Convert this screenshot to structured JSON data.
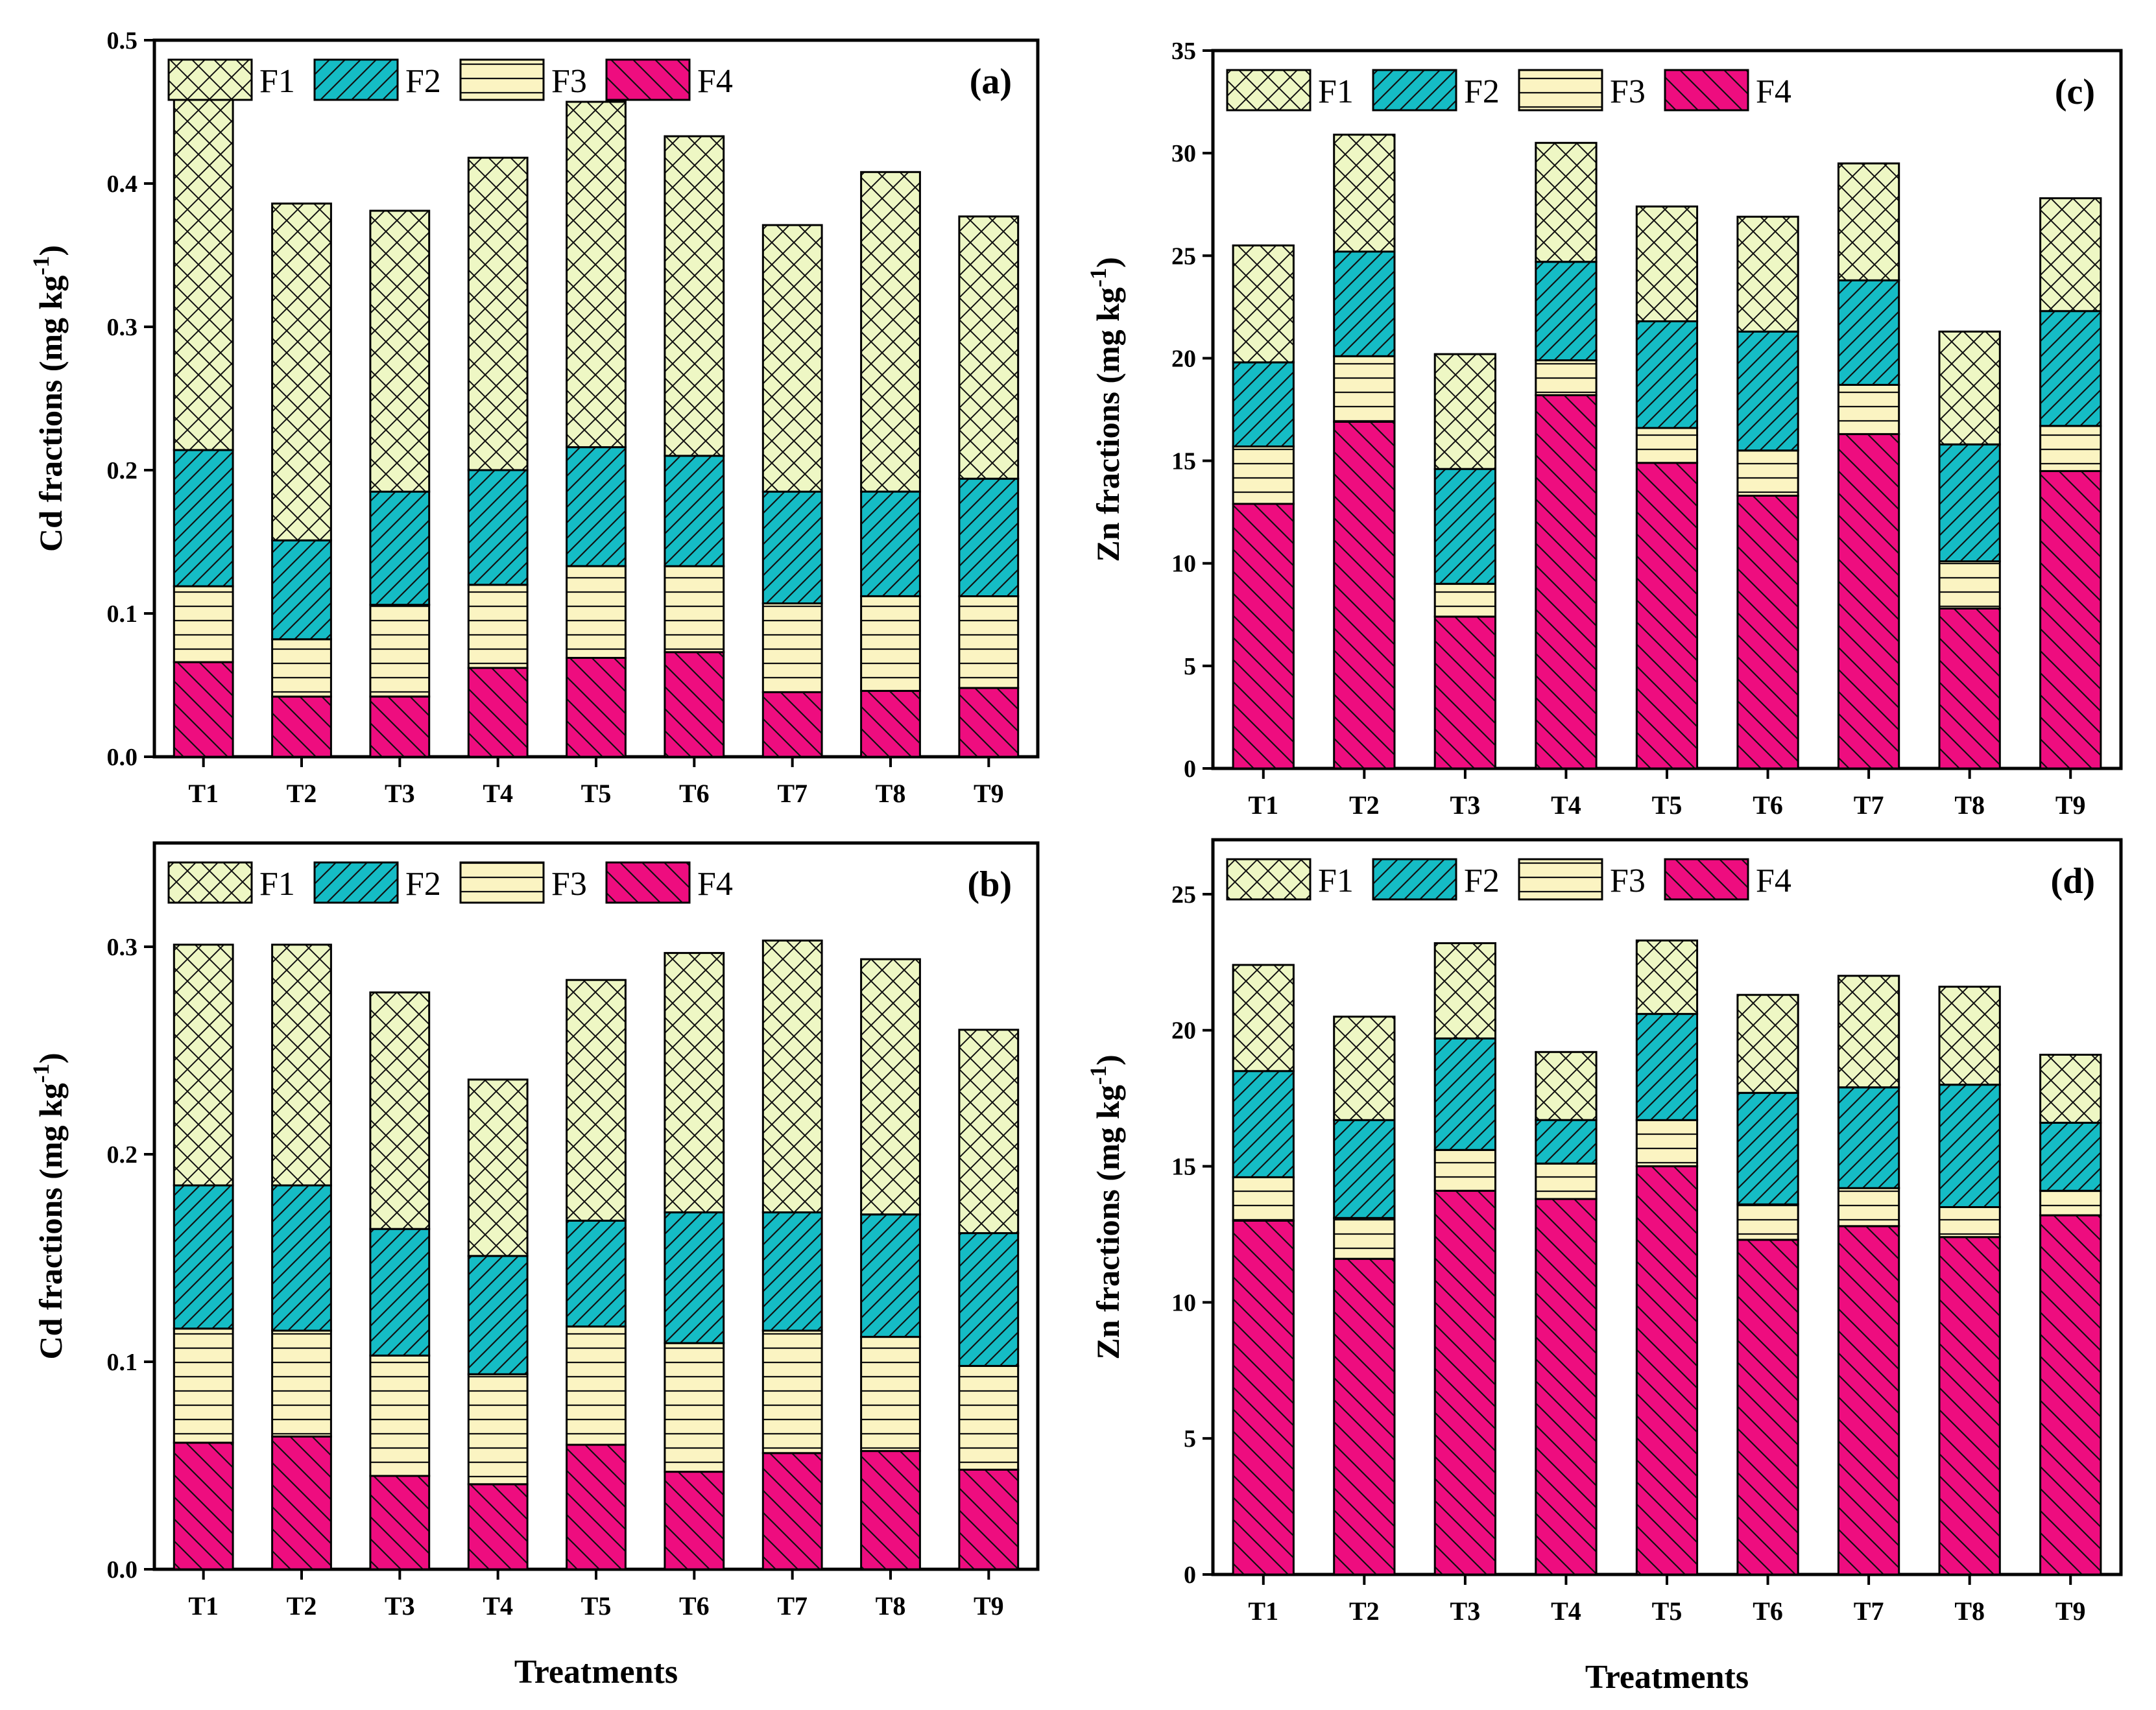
{
  "figure": {
    "legend_labels": [
      "F1",
      "F2",
      "F3",
      "F4"
    ],
    "colors": {
      "F1": "#eef7c4",
      "F2": "#15bcc5",
      "F3": "#fbf4c2",
      "F4": "#ee0d7f"
    }
  },
  "chart_data": [
    {
      "panel": "(a)",
      "type": "bar",
      "stacked": true,
      "categories": [
        "T1",
        "T2",
        "T3",
        "T4",
        "T5",
        "T6",
        "T7",
        "T8",
        "T9"
      ],
      "ylabel": "Cd fractions (mg kg",
      "ylabel_sup": "-1",
      "ylabel_tail": ")",
      "xlabel": "",
      "ylim": [
        0,
        0.5
      ],
      "yticks": [
        0,
        0.1,
        0.2,
        0.3,
        0.4,
        0.5
      ],
      "ytick_labels": [
        "0.0",
        "0.1",
        "0.2",
        "0.3",
        "0.4",
        "0.5"
      ],
      "legend_position": "top-left",
      "series": [
        {
          "name": "F4",
          "values": [
            0.066,
            0.042,
            0.042,
            0.062,
            0.069,
            0.073,
            0.045,
            0.046,
            0.048
          ]
        },
        {
          "name": "F3",
          "values": [
            0.053,
            0.04,
            0.064,
            0.058,
            0.064,
            0.06,
            0.062,
            0.066,
            0.064
          ]
        },
        {
          "name": "F2",
          "values": [
            0.095,
            0.069,
            0.079,
            0.08,
            0.083,
            0.077,
            0.078,
            0.073,
            0.082
          ]
        },
        {
          "name": "F1",
          "values": [
            0.253,
            0.235,
            0.196,
            0.218,
            0.241,
            0.223,
            0.186,
            0.223,
            0.183
          ]
        }
      ]
    },
    {
      "panel": "(b)",
      "type": "bar",
      "stacked": true,
      "categories": [
        "T1",
        "T2",
        "T3",
        "T4",
        "T5",
        "T6",
        "T7",
        "T8",
        "T9"
      ],
      "ylabel": "Cd fractions (mg kg",
      "ylabel_sup": "-1",
      "ylabel_tail": ")",
      "xlabel": "Treatments",
      "ylim": [
        0,
        0.35
      ],
      "yticks": [
        0,
        0.1,
        0.2,
        0.3
      ],
      "ytick_labels": [
        "0.0",
        "0.1",
        "0.2",
        "0.3"
      ],
      "legend_position": "top-left",
      "series": [
        {
          "name": "F4",
          "values": [
            0.061,
            0.064,
            0.045,
            0.041,
            0.06,
            0.047,
            0.056,
            0.057,
            0.048
          ]
        },
        {
          "name": "F3",
          "values": [
            0.055,
            0.051,
            0.058,
            0.053,
            0.057,
            0.062,
            0.059,
            0.055,
            0.05
          ]
        },
        {
          "name": "F2",
          "values": [
            0.069,
            0.07,
            0.061,
            0.057,
            0.051,
            0.063,
            0.057,
            0.059,
            0.064
          ]
        },
        {
          "name": "F1",
          "values": [
            0.116,
            0.116,
            0.114,
            0.085,
            0.116,
            0.125,
            0.131,
            0.123,
            0.098
          ]
        }
      ]
    },
    {
      "panel": "(c)",
      "type": "bar",
      "stacked": true,
      "categories": [
        "T1",
        "T2",
        "T3",
        "T4",
        "T5",
        "T6",
        "T7",
        "T8",
        "T9"
      ],
      "ylabel": "Zn fractions (mg kg",
      "ylabel_sup": "-1",
      "ylabel_tail": ")",
      "xlabel": "",
      "ylim": [
        0,
        35
      ],
      "yticks": [
        0,
        5,
        10,
        15,
        20,
        25,
        30,
        35
      ],
      "ytick_labels": [
        "0",
        "5",
        "10",
        "15",
        "20",
        "25",
        "30",
        "35"
      ],
      "legend_position": "top-left",
      "series": [
        {
          "name": "F4",
          "values": [
            12.9,
            16.9,
            7.4,
            18.2,
            14.9,
            13.3,
            16.3,
            7.8,
            14.5
          ]
        },
        {
          "name": "F3",
          "values": [
            2.8,
            3.2,
            1.6,
            1.7,
            1.7,
            2.2,
            2.4,
            2.3,
            2.2
          ]
        },
        {
          "name": "F2",
          "values": [
            4.1,
            5.1,
            5.6,
            4.8,
            5.2,
            5.8,
            5.1,
            5.7,
            5.6
          ]
        },
        {
          "name": "F1",
          "values": [
            5.7,
            5.7,
            5.6,
            5.8,
            5.6,
            5.6,
            5.7,
            5.5,
            5.5
          ]
        }
      ]
    },
    {
      "panel": "(d)",
      "type": "bar",
      "stacked": true,
      "categories": [
        "T1",
        "T2",
        "T3",
        "T4",
        "T5",
        "T6",
        "T7",
        "T8",
        "T9"
      ],
      "ylabel": "Zn fractions (mg kg",
      "ylabel_sup": "-1",
      "ylabel_tail": ")",
      "xlabel": "Treatments",
      "ylim": [
        0,
        27
      ],
      "yticks": [
        0,
        5,
        10,
        15,
        20,
        25
      ],
      "ytick_labels": [
        "0",
        "5",
        "10",
        "15",
        "20",
        "25"
      ],
      "legend_position": "top-left",
      "series": [
        {
          "name": "F4",
          "values": [
            13.0,
            11.6,
            14.1,
            13.8,
            15.0,
            12.3,
            12.8,
            12.4,
            13.2
          ]
        },
        {
          "name": "F3",
          "values": [
            1.6,
            1.5,
            1.5,
            1.3,
            1.7,
            1.3,
            1.4,
            1.1,
            0.9
          ]
        },
        {
          "name": "F2",
          "values": [
            3.9,
            3.6,
            4.1,
            1.6,
            3.9,
            4.1,
            3.7,
            4.5,
            2.5
          ]
        },
        {
          "name": "F1",
          "values": [
            3.9,
            3.8,
            3.5,
            2.5,
            2.7,
            3.6,
            4.1,
            3.6,
            2.5
          ]
        }
      ]
    }
  ]
}
